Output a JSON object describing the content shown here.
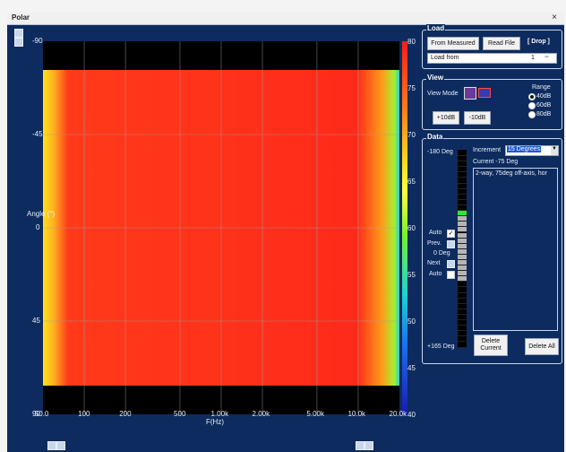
{
  "window": {
    "title": "Polar"
  },
  "plot": {
    "y_axis_label": "Angle (°)",
    "y_ticks": [
      "-90",
      "-45",
      "0",
      "45",
      "90"
    ],
    "x_axis_label": "F(Hz)",
    "x_ticks": [
      "50.0",
      "100",
      "200",
      "500",
      "1.00k",
      "2.00k",
      "5.00k",
      "10.0k",
      "20.0k"
    ],
    "colorbar_ticks": [
      "80",
      "75",
      "70",
      "65",
      "60",
      "55",
      "50",
      "45",
      "40"
    ]
  },
  "chart_data": {
    "type": "heatmap",
    "xlabel": "F(Hz)",
    "ylabel": "Angle (°)",
    "x_scale": "log",
    "xlim": [
      50,
      20000
    ],
    "ylim": [
      -90,
      90
    ],
    "color_range": [
      40,
      80
    ],
    "x_ticks": [
      "50.0",
      "100",
      "200",
      "500",
      "1.00k",
      "2.00k",
      "5.00k",
      "10.0k",
      "20.0k"
    ],
    "y_ticks": [
      -90,
      -45,
      0,
      45,
      90
    ],
    "measured_angle_range": [
      -75,
      75
    ]
  },
  "load": {
    "title": "Load",
    "from_measured": "From Measured",
    "read_file": "Read File",
    "drop": "[ Drop ]",
    "load_from_label": "Load from",
    "load_from_value": "1"
  },
  "view": {
    "title": "View",
    "mode_label": "View Mode",
    "range_label": "Range",
    "ranges": [
      "40dB",
      "60dB",
      "80dB"
    ],
    "selected_range": "40dB",
    "plus_button": "+10dB",
    "minus_button": "-10dB"
  },
  "data": {
    "title": "Data",
    "top_label": "-180 Deg",
    "bottom_label": "+165 Deg",
    "zero_label": "0 Deg",
    "auto1_label": "Auto",
    "prev_label": "Prev.",
    "next_label": "Next",
    "auto2_label": "Auto",
    "increment_label": "Increment",
    "increment_value": "15 Degrees",
    "current_label": "Current -75 Deg",
    "description": "2-way, 75deg off-axis, hor",
    "delete_current": "Delete Current",
    "delete_all": "Delete All"
  },
  "colors": {
    "background": "#0d2b5e",
    "heat_red": "#ff2a1a",
    "heat_yellow": "#ffe21a",
    "selected_green": "#2ee62e",
    "filled_grey": "#b5b5b5"
  }
}
